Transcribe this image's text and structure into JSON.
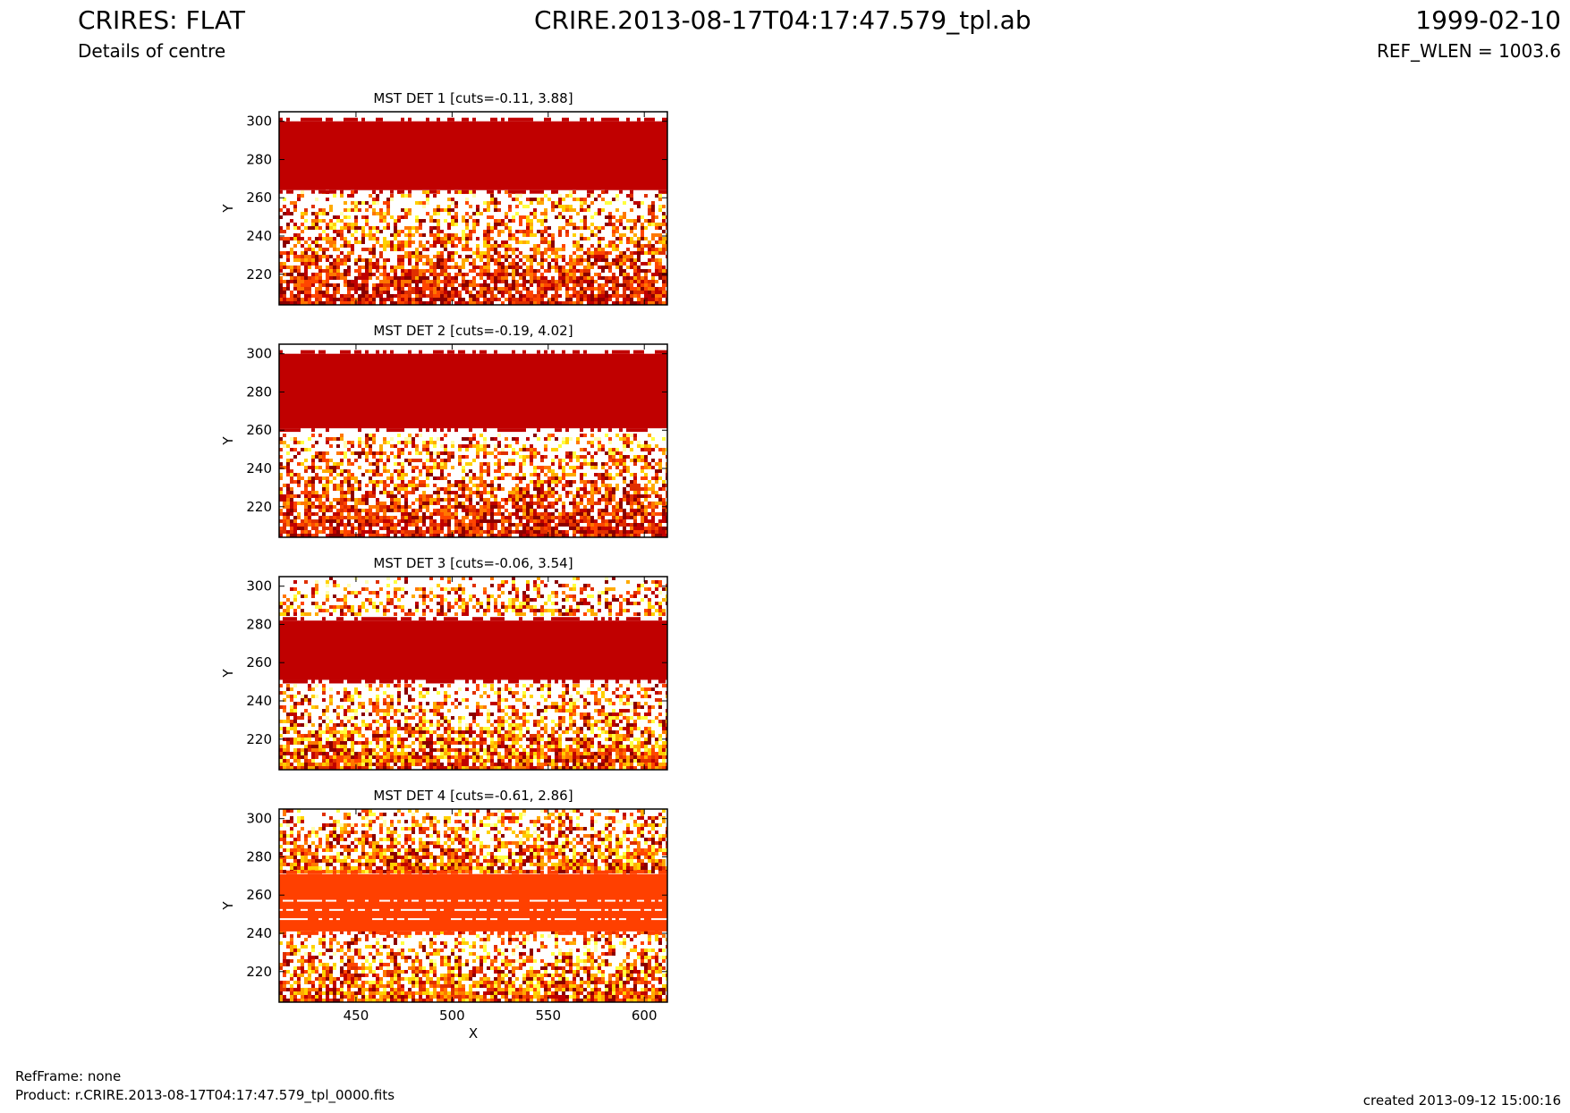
{
  "header": {
    "title_left": "CRIRES: FLAT",
    "subtitle_left": "Details of centre",
    "title_center": "CRIRE.2013-08-17T04:17:47.579_tpl.ab",
    "title_right": "1999-02-10",
    "subtitle_right": "REF_WLEN = 1003.6"
  },
  "footer": {
    "refframe": "RefFrame: none",
    "product": "Product: r.CRIRE.2013-08-17T04:17:47.579_tpl_0000.fits",
    "created": "created 2013-09-12 15:00:16"
  },
  "colors": {
    "band_dark_red": "#c00000",
    "band_orange": "#ff4000",
    "noise_palette": [
      "#8b0000",
      "#c00000",
      "#e03000",
      "#ff4500",
      "#ff7700",
      "#ffaa00",
      "#ffd000",
      "#ffff40",
      "#ffffb0",
      "#ffffff"
    ]
  },
  "chart_data": [
    {
      "type": "heatmap",
      "title": "MST DET 1 [cuts=-0.11, 3.88]",
      "ylabel": "Y",
      "xlabel": "",
      "xlim": [
        410,
        612
      ],
      "ylim": [
        204,
        305
      ],
      "yticks": [
        220,
        240,
        260,
        280,
        300
      ],
      "xticks": [],
      "band": {
        "y_range": [
          264,
          300
        ],
        "color": "#c00000"
      },
      "noise_region": [
        204,
        262
      ],
      "colormap": "hot",
      "cuts": [
        -0.11,
        3.88
      ]
    },
    {
      "type": "heatmap",
      "title": "MST DET 2 [cuts=-0.19, 4.02]",
      "ylabel": "Y",
      "xlabel": "",
      "xlim": [
        410,
        612
      ],
      "ylim": [
        204,
        305
      ],
      "yticks": [
        220,
        240,
        260,
        280,
        300
      ],
      "xticks": [],
      "band": {
        "y_range": [
          261,
          300
        ],
        "color": "#c00000"
      },
      "noise_region": [
        204,
        258
      ],
      "colormap": "hot",
      "cuts": [
        -0.19,
        4.02
      ]
    },
    {
      "type": "heatmap",
      "title": "MST DET 3 [cuts=-0.06, 3.54]",
      "ylabel": "Y",
      "xlabel": "",
      "xlim": [
        410,
        612
      ],
      "ylim": [
        204,
        305
      ],
      "yticks": [
        220,
        240,
        260,
        280,
        300
      ],
      "xticks": [],
      "band": {
        "y_range": [
          251,
          282
        ],
        "color": "#c00000"
      },
      "noise_region": [
        204,
        248
      ],
      "noise_region_top": [
        286,
        305
      ],
      "colormap": "hot",
      "cuts": [
        -0.06,
        3.54
      ]
    },
    {
      "type": "heatmap",
      "title": "MST DET 4 [cuts=-0.61, 2.86]",
      "ylabel": "Y",
      "xlabel": "X",
      "xlim": [
        410,
        612
      ],
      "ylim": [
        204,
        305
      ],
      "yticks": [
        220,
        240,
        260,
        280,
        300
      ],
      "xticks": [
        450,
        500,
        550,
        600
      ],
      "band": {
        "y_range": [
          241,
          271
        ],
        "color": "#ff4000"
      },
      "noise_region": [
        204,
        240
      ],
      "noise_region_top": [
        272,
        305
      ],
      "colormap": "hot",
      "cuts": [
        -0.61,
        2.86
      ]
    }
  ]
}
